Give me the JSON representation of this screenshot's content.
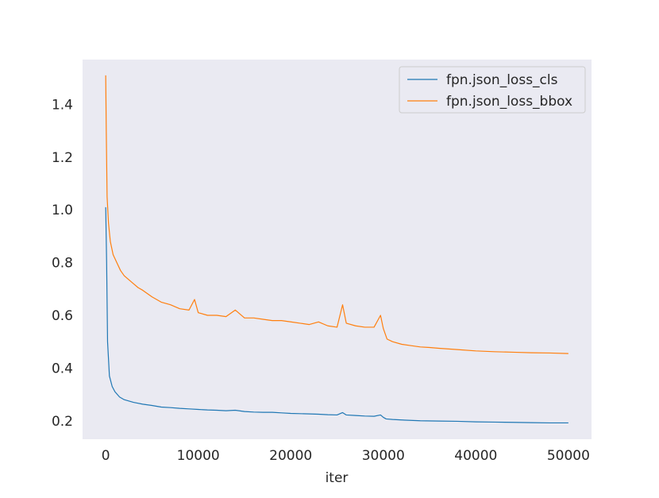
{
  "chart_data": {
    "type": "line",
    "title": "",
    "xlabel": "iter",
    "ylabel": "",
    "xlim": [
      -2500,
      52500
    ],
    "ylim": [
      0.13,
      1.57
    ],
    "xticks": [
      0,
      10000,
      20000,
      30000,
      40000,
      50000
    ],
    "xtick_labels": [
      "0",
      "10000",
      "20000",
      "30000",
      "40000",
      "50000"
    ],
    "yticks": [
      0.2,
      0.4,
      0.6,
      0.8,
      1.0,
      1.2,
      1.4
    ],
    "ytick_labels": [
      "0.2",
      "0.4",
      "0.6",
      "0.8",
      "1.0",
      "1.2",
      "1.4"
    ],
    "grid": false,
    "legend_position": "top-right",
    "series": [
      {
        "name": "fpn.json_loss_cls",
        "color": "#1f77b4",
        "x": [
          0,
          100,
          200,
          400,
          700,
          1000,
          1500,
          2000,
          3000,
          4000,
          5000,
          6000,
          7000,
          8000,
          9000,
          10000,
          11000,
          12000,
          13000,
          14000,
          15000,
          16000,
          17000,
          18000,
          19000,
          20000,
          21000,
          22000,
          23000,
          24000,
          25000,
          25600,
          26000,
          27000,
          28000,
          29000,
          29700,
          30000,
          30300,
          31000,
          32000,
          34000,
          36000,
          38000,
          40000,
          42000,
          44000,
          46000,
          48000,
          50000
        ],
        "y": [
          1.01,
          0.8,
          0.5,
          0.37,
          0.33,
          0.31,
          0.29,
          0.28,
          0.27,
          0.263,
          0.258,
          0.252,
          0.25,
          0.247,
          0.245,
          0.243,
          0.241,
          0.24,
          0.238,
          0.24,
          0.235,
          0.233,
          0.232,
          0.232,
          0.23,
          0.228,
          0.227,
          0.226,
          0.225,
          0.223,
          0.222,
          0.231,
          0.222,
          0.22,
          0.218,
          0.217,
          0.222,
          0.213,
          0.207,
          0.205,
          0.203,
          0.2,
          0.199,
          0.198,
          0.196,
          0.195,
          0.194,
          0.193,
          0.192,
          0.192
        ]
      },
      {
        "name": "fpn.json_loss_bbox",
        "color": "#ff7f0e",
        "x": [
          0,
          60,
          150,
          300,
          500,
          800,
          1200,
          1600,
          2000,
          2500,
          3000,
          3500,
          4000,
          5000,
          6000,
          7000,
          8000,
          9000,
          9600,
          10000,
          11000,
          12000,
          13000,
          14000,
          15000,
          16000,
          17000,
          18000,
          19000,
          20000,
          21000,
          22000,
          23000,
          24000,
          25000,
          25600,
          26000,
          27000,
          28000,
          29000,
          29700,
          30000,
          30400,
          31000,
          32000,
          33000,
          34000,
          35000,
          36000,
          38000,
          40000,
          42000,
          44000,
          46000,
          48000,
          50000
        ],
        "y": [
          1.51,
          1.3,
          1.05,
          0.95,
          0.88,
          0.83,
          0.8,
          0.77,
          0.75,
          0.735,
          0.72,
          0.705,
          0.695,
          0.67,
          0.65,
          0.64,
          0.625,
          0.62,
          0.66,
          0.61,
          0.6,
          0.6,
          0.595,
          0.62,
          0.59,
          0.59,
          0.585,
          0.58,
          0.58,
          0.575,
          0.57,
          0.565,
          0.575,
          0.56,
          0.555,
          0.64,
          0.57,
          0.56,
          0.555,
          0.555,
          0.6,
          0.55,
          0.51,
          0.5,
          0.49,
          0.485,
          0.48,
          0.478,
          0.475,
          0.47,
          0.465,
          0.462,
          0.46,
          0.458,
          0.457,
          0.455
        ]
      }
    ]
  }
}
